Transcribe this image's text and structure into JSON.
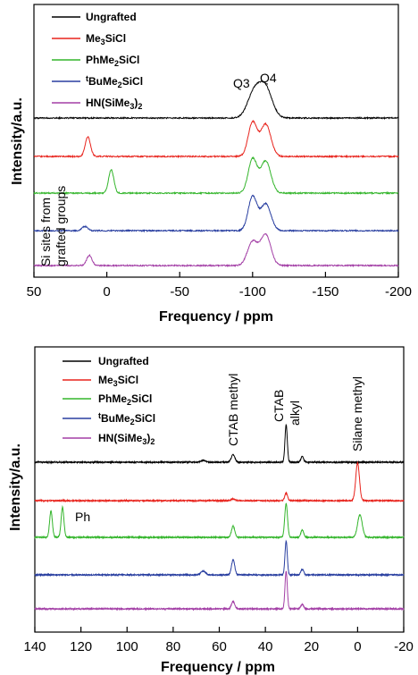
{
  "chart_data": [
    {
      "type": "line",
      "xlabel": "Frequency / ppm",
      "ylabel": "Intensity/a.u.",
      "xlim": [
        50,
        -200
      ],
      "xticks": [
        50,
        0,
        -50,
        -100,
        -150,
        -200
      ],
      "legend_placement": "top-left",
      "series": [
        {
          "name": "Ungrafted",
          "color": "#000000",
          "peaks": [
            [
              -101,
              0.7,
              4.5
            ],
            [
              -109,
              0.8,
              4.5
            ]
          ]
        },
        {
          "name": "Me3SiCl",
          "color": "#e8231c",
          "peaks": [
            [
              13,
              0.55,
              1.8
            ],
            [
              -100,
              0.95,
              3
            ],
            [
              -109,
              0.9,
              3.5
            ]
          ]
        },
        {
          "name": "PhMe2SiCl",
          "color": "#33b52b",
          "peaks": [
            [
              -3,
              0.65,
              1.8
            ],
            [
              -100,
              0.95,
              3
            ],
            [
              -109,
              0.9,
              3.5
            ]
          ]
        },
        {
          "name": "tBuMe2SiCl",
          "color": "#283ea0",
          "peaks": [
            [
              15,
              0.12,
              2
            ],
            [
              -100,
              0.95,
              3
            ],
            [
              -109,
              0.75,
              3.5
            ]
          ]
        },
        {
          "name": "HN(SiMe3)2",
          "color": "#a33fa6",
          "peaks": [
            [
              12,
              0.3,
              1.8
            ],
            [
              -100,
              0.7,
              3.5
            ],
            [
              -109,
              0.9,
              3.5
            ]
          ]
        }
      ],
      "annotations": [
        {
          "text": "Q3",
          "x": -98
        },
        {
          "text": "Q4",
          "x": -110
        },
        {
          "text": "Si sites from",
          "x": 40
        },
        {
          "text": "grafted groups",
          "x": 33
        }
      ]
    },
    {
      "type": "line",
      "xlabel": "Frequency / ppm",
      "ylabel": "Intensity/a.u.",
      "xlim": [
        140,
        -20
      ],
      "xticks": [
        140,
        120,
        100,
        80,
        60,
        40,
        20,
        0,
        -20
      ],
      "legend_placement": "top-left",
      "series": [
        {
          "name": "Ungrafted",
          "color": "#000000",
          "peaks": [
            [
              54,
              0.2,
              0.8
            ],
            [
              31,
              1.0,
              0.5
            ],
            [
              24,
              0.15,
              0.6
            ],
            [
              67,
              0.05,
              1
            ]
          ]
        },
        {
          "name": "Me3SiCl",
          "color": "#e8231c",
          "peaks": [
            [
              31,
              0.2,
              0.6
            ],
            [
              54,
              0.05,
              0.8
            ],
            [
              0,
              1.0,
              0.8
            ]
          ]
        },
        {
          "name": "PhMe2SiCl",
          "color": "#33b52b",
          "peaks": [
            [
              133,
              0.7,
              0.6
            ],
            [
              128,
              0.8,
              0.6
            ],
            [
              54,
              0.3,
              0.7
            ],
            [
              31,
              0.9,
              0.6
            ],
            [
              24,
              0.2,
              0.6
            ],
            [
              -1,
              0.6,
              1
            ]
          ]
        },
        {
          "name": "tBuMe2SiCl",
          "color": "#283ea0",
          "peaks": [
            [
              54,
              0.4,
              0.7
            ],
            [
              31,
              0.9,
              0.5
            ],
            [
              24,
              0.15,
              0.6
            ],
            [
              67,
              0.1,
              1
            ]
          ]
        },
        {
          "name": "HN(SiMe3)2",
          "color": "#a33fa6",
          "peaks": [
            [
              54,
              0.2,
              0.7
            ],
            [
              31,
              1.0,
              0.5
            ],
            [
              24,
              0.12,
              0.6
            ]
          ]
        }
      ],
      "annotations": [
        {
          "text": "CTAB methyl",
          "x": 54
        },
        {
          "text": "CTAB",
          "x": 31
        },
        {
          "text": "alkyl",
          "x": 31
        },
        {
          "text": "Silane methyl",
          "x": 0
        },
        {
          "text": "Ph",
          "x": 122
        }
      ]
    }
  ]
}
